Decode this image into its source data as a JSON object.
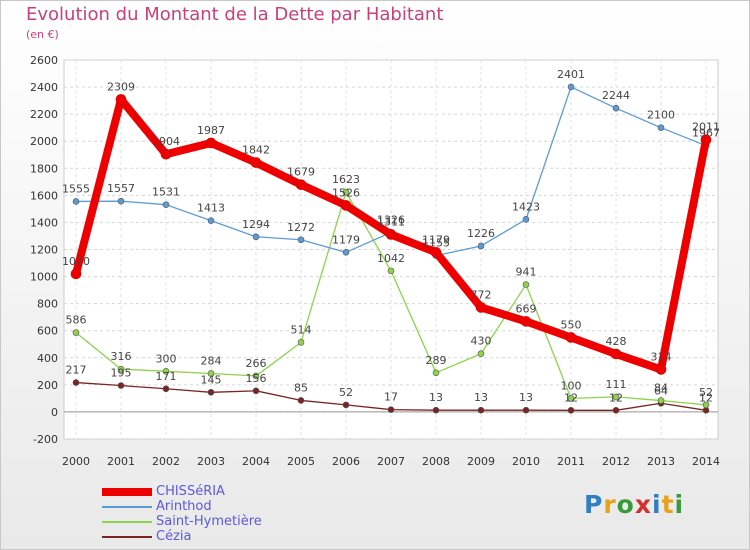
{
  "title": "Evolution du Montant de la Dette par Habitant",
  "subtitle": "(en €)",
  "logo": {
    "letters": [
      {
        "ch": "P",
        "color": "#2f7fc1"
      },
      {
        "ch": "r",
        "color": "#e8a21a"
      },
      {
        "ch": "o",
        "color": "#3a9a3a"
      },
      {
        "ch": "x",
        "color": "#d62f2f"
      },
      {
        "ch": "i",
        "color": "#2f7fc1"
      },
      {
        "ch": "t",
        "color": "#e8a21a"
      },
      {
        "ch": "i",
        "color": "#3a9a3a"
      }
    ]
  },
  "chart_data": {
    "type": "line",
    "title": "Evolution du Montant de la Dette par Habitant",
    "subtitle": "(en €)",
    "x": [
      2000,
      2001,
      2002,
      2003,
      2004,
      2005,
      2006,
      2007,
      2008,
      2009,
      2010,
      2011,
      2012,
      2013,
      2014
    ],
    "ylim": [
      -200,
      2600
    ],
    "yticks": [
      -200,
      0,
      200,
      400,
      600,
      800,
      1000,
      1200,
      1400,
      1600,
      1800,
      2000,
      2200,
      2400,
      2600
    ],
    "grid": true,
    "legend_position": "bottom-left",
    "series": [
      {
        "name": "CHISSéRIA",
        "color": "#ee0000",
        "values": [
          1020,
          2309,
          1904,
          1987,
          1842,
          1679,
          1526,
          1311,
          1179,
          772,
          669,
          550,
          428,
          314,
          2011
        ]
      },
      {
        "name": "Arinthod",
        "color": "#5b9bd5",
        "values": [
          1555,
          1557,
          1531,
          1413,
          1294,
          1272,
          1179,
          1326,
          1155,
          1226,
          1423,
          2401,
          2244,
          2100,
          1967
        ]
      },
      {
        "name": "Saint-Hymetière",
        "color": "#8ed34a",
        "values": [
          586,
          316,
          300,
          284,
          266,
          514,
          1623,
          1042,
          289,
          430,
          941,
          100,
          111,
          84,
          52
        ]
      },
      {
        "name": "Cézia",
        "color": "#7a2424",
        "values": [
          217,
          195,
          171,
          145,
          156,
          85,
          52,
          17,
          13,
          13,
          13,
          12,
          12,
          64,
          12
        ]
      }
    ]
  }
}
